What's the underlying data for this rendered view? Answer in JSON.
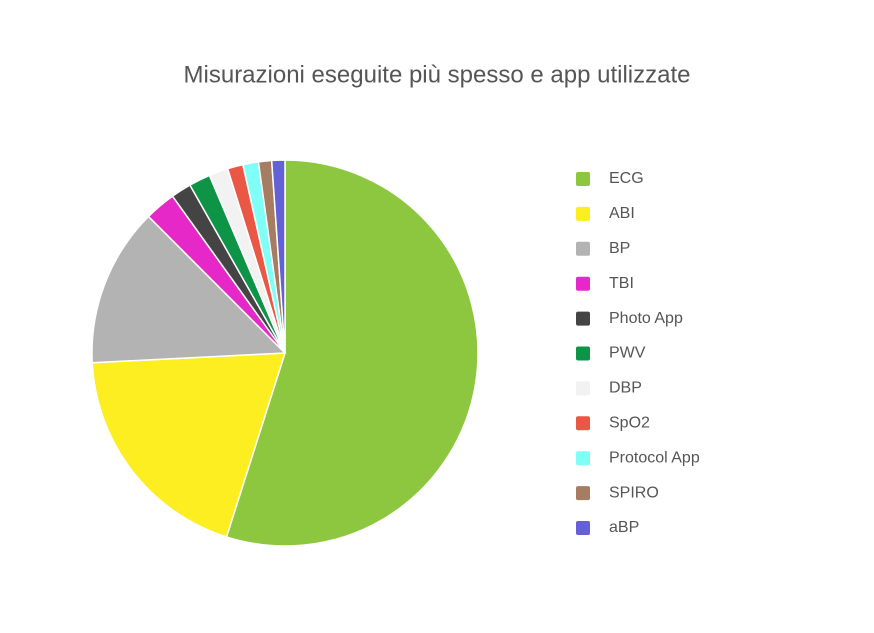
{
  "chart_data": {
    "type": "pie",
    "title": "Misurazioni eseguite più spesso e app utilizzate",
    "categories": [
      "ECG",
      "ABI",
      "BP",
      "TBI",
      "Photo App",
      "PWV",
      "DBP",
      "SpO2",
      "Protocol App",
      "SPIRO",
      "aBP"
    ],
    "values": [
      54.9,
      19.3,
      13.3,
      2.6,
      1.7,
      1.8,
      1.6,
      1.3,
      1.3,
      1.1,
      1.1
    ],
    "colors": [
      "#8dc63f",
      "#fcee21",
      "#b3b3b3",
      "#e628c8",
      "#444444",
      "#0e9447",
      "#f2f2f2",
      "#ea5745",
      "#7ffff5",
      "#a67c62",
      "#6460d8"
    ],
    "legend": "right"
  }
}
